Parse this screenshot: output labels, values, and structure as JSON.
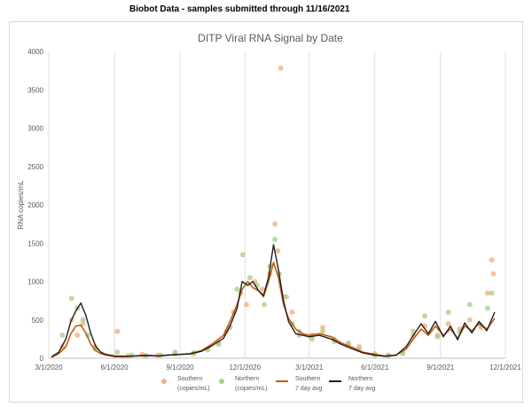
{
  "caption": "Biobot Data - samples submitted through 11/16/2021",
  "chart_data": {
    "type": "scatter",
    "title": "DITP Viral RNA Signal by Date",
    "xlabel": "",
    "ylabel": "RNA copies/mL",
    "x_range": [
      "2020-03-01",
      "2021-12-01"
    ],
    "ylim": [
      0,
      4000
    ],
    "y_ticks": [
      0,
      500,
      1000,
      1500,
      2000,
      2500,
      3000,
      3500,
      4000
    ],
    "x_ticks": [
      "3/1/2020",
      "6/1/2020",
      "9/1/2020",
      "12/1/2020",
      "3/1/2021",
      "6/1/2021",
      "9/1/2021",
      "12/1/2021"
    ],
    "grid": "vertical",
    "legend_position": "bottom",
    "colors": {
      "southern_points": "#f4b183",
      "northern_points": "#a9d18e",
      "southern_avg": "#c55a11",
      "northern_avg": "#1e1e1e"
    },
    "legend": [
      {
        "label_line1": "Southern",
        "label_line2": "(copies/mL)",
        "kind": "point",
        "color": "#f4b183"
      },
      {
        "label_line1": "Northern",
        "label_line2": "(copies/mL)",
        "kind": "point",
        "color": "#a9d18e"
      },
      {
        "label_line1": "Southern",
        "label_line2": "7 day avg",
        "kind": "line",
        "color": "#c55a11"
      },
      {
        "label_line1": "Northern",
        "label_line2": "7 day avg",
        "kind": "line",
        "color": "#1e1e1e"
      }
    ],
    "series": [
      {
        "name": "Southern 7 day avg",
        "kind": "line",
        "x": [
          "2020-03-05",
          "2020-03-15",
          "2020-03-25",
          "2020-04-01",
          "2020-04-08",
          "2020-04-15",
          "2020-04-22",
          "2020-04-29",
          "2020-05-06",
          "2020-05-13",
          "2020-05-20",
          "2020-06-01",
          "2020-06-15",
          "2020-07-01",
          "2020-07-15",
          "2020-08-01",
          "2020-08-15",
          "2020-09-01",
          "2020-09-15",
          "2020-10-01",
          "2020-10-15",
          "2020-11-01",
          "2020-11-10",
          "2020-11-20",
          "2020-11-27",
          "2020-12-05",
          "2020-12-12",
          "2020-12-20",
          "2020-12-27",
          "2021-01-03",
          "2021-01-10",
          "2021-01-17",
          "2021-01-24",
          "2021-01-31",
          "2021-02-10",
          "2021-02-20",
          "2021-03-01",
          "2021-03-15",
          "2021-04-01",
          "2021-04-15",
          "2021-05-01",
          "2021-05-15",
          "2021-06-01",
          "2021-06-15",
          "2021-07-01",
          "2021-07-15",
          "2021-07-25",
          "2021-08-05",
          "2021-08-15",
          "2021-08-25",
          "2021-09-05",
          "2021-09-15",
          "2021-09-25",
          "2021-10-05",
          "2021-10-15",
          "2021-10-25",
          "2021-11-05",
          "2021-11-16"
        ],
        "values": [
          10,
          60,
          150,
          320,
          420,
          430,
          330,
          180,
          100,
          60,
          40,
          20,
          20,
          30,
          40,
          30,
          40,
          50,
          60,
          100,
          180,
          300,
          480,
          700,
          900,
          1000,
          920,
          880,
          800,
          1000,
          1250,
          1050,
          700,
          520,
          380,
          320,
          300,
          320,
          280,
          200,
          140,
          80,
          50,
          30,
          40,
          120,
          250,
          380,
          300,
          420,
          300,
          380,
          260,
          420,
          360,
          450,
          380,
          520
        ]
      },
      {
        "name": "Northern 7 day avg",
        "kind": "line",
        "x": [
          "2020-03-05",
          "2020-03-15",
          "2020-03-25",
          "2020-04-01",
          "2020-04-08",
          "2020-04-15",
          "2020-04-22",
          "2020-04-29",
          "2020-05-06",
          "2020-05-13",
          "2020-05-20",
          "2020-06-01",
          "2020-06-15",
          "2020-07-01",
          "2020-07-15",
          "2020-08-01",
          "2020-08-15",
          "2020-09-01",
          "2020-09-15",
          "2020-10-01",
          "2020-10-15",
          "2020-11-01",
          "2020-11-10",
          "2020-11-20",
          "2020-11-27",
          "2020-12-05",
          "2020-12-12",
          "2020-12-20",
          "2020-12-27",
          "2021-01-03",
          "2021-01-10",
          "2021-01-17",
          "2021-01-24",
          "2021-01-31",
          "2021-02-10",
          "2021-02-20",
          "2021-03-01",
          "2021-03-15",
          "2021-04-01",
          "2021-04-15",
          "2021-05-01",
          "2021-05-15",
          "2021-06-01",
          "2021-06-15",
          "2021-07-01",
          "2021-07-15",
          "2021-07-25",
          "2021-08-05",
          "2021-08-15",
          "2021-08-25",
          "2021-09-05",
          "2021-09-15",
          "2021-09-25",
          "2021-10-05",
          "2021-10-15",
          "2021-10-25",
          "2021-11-05",
          "2021-11-16"
        ],
        "values": [
          20,
          80,
          250,
          480,
          620,
          720,
          560,
          320,
          150,
          80,
          50,
          30,
          25,
          30,
          35,
          30,
          40,
          50,
          55,
          90,
          160,
          260,
          420,
          650,
          1000,
          950,
          1000,
          880,
          820,
          1050,
          1480,
          1150,
          750,
          480,
          320,
          300,
          280,
          300,
          250,
          180,
          120,
          70,
          40,
          25,
          40,
          150,
          300,
          450,
          320,
          480,
          280,
          420,
          240,
          460,
          330,
          480,
          360,
          600
        ]
      },
      {
        "name": "Southern (copies/mL)",
        "kind": "point",
        "x": [
          "2020-03-20",
          "2020-04-02",
          "2020-04-10",
          "2020-04-18",
          "2020-05-05",
          "2020-06-05",
          "2020-06-20",
          "2020-07-10",
          "2020-08-01",
          "2020-08-25",
          "2020-09-20",
          "2020-10-10",
          "2020-10-25",
          "2020-11-05",
          "2020-11-15",
          "2020-11-25",
          "2020-12-03",
          "2020-12-15",
          "2020-12-25",
          "2021-01-05",
          "2021-01-12",
          "2021-01-16",
          "2021-01-20",
          "2021-01-28",
          "2021-02-05",
          "2021-02-15",
          "2021-03-05",
          "2021-03-20",
          "2021-04-05",
          "2021-04-25",
          "2021-05-10",
          "2021-06-01",
          "2021-06-20",
          "2021-07-10",
          "2021-07-25",
          "2021-08-10",
          "2021-08-28",
          "2021-09-12",
          "2021-09-28",
          "2021-10-12",
          "2021-10-28",
          "2021-11-06",
          "2021-11-12",
          "2021-11-14"
        ],
        "values": [
          150,
          500,
          300,
          450,
          150,
          350,
          30,
          50,
          40,
          80,
          60,
          120,
          200,
          350,
          600,
          850,
          700,
          1000,
          900,
          1100,
          1750,
          1400,
          3780,
          800,
          600,
          350,
          300,
          400,
          250,
          200,
          150,
          60,
          40,
          80,
          300,
          420,
          300,
          450,
          380,
          500,
          400,
          850,
          1280,
          1100
        ]
      },
      {
        "name": "Northern (copies/mL)",
        "kind": "point",
        "x": [
          "2020-03-20",
          "2020-04-02",
          "2020-04-10",
          "2020-04-18",
          "2020-04-25",
          "2020-05-05",
          "2020-06-05",
          "2020-06-25",
          "2020-07-15",
          "2020-08-05",
          "2020-08-25",
          "2020-09-20",
          "2020-10-10",
          "2020-10-25",
          "2020-11-10",
          "2020-11-20",
          "2020-11-28",
          "2020-12-08",
          "2020-12-18",
          "2020-12-28",
          "2021-01-05",
          "2021-01-12",
          "2021-01-18",
          "2021-01-25",
          "2021-02-05",
          "2021-02-15",
          "2021-03-05",
          "2021-03-20",
          "2021-04-05",
          "2021-04-25",
          "2021-05-10",
          "2021-06-01",
          "2021-06-20",
          "2021-07-10",
          "2021-07-25",
          "2021-08-10",
          "2021-08-28",
          "2021-09-12",
          "2021-09-28",
          "2021-10-12",
          "2021-10-28",
          "2021-11-06",
          "2021-11-12"
        ],
        "values": [
          300,
          780,
          650,
          500,
          300,
          120,
          80,
          40,
          30,
          40,
          60,
          70,
          110,
          180,
          400,
          900,
          1350,
          1050,
          950,
          700,
          1200,
          1550,
          1100,
          800,
          450,
          300,
          250,
          350,
          220,
          180,
          120,
          40,
          30,
          60,
          350,
          550,
          280,
          600,
          350,
          700,
          420,
          650,
          850
        ]
      }
    ]
  }
}
